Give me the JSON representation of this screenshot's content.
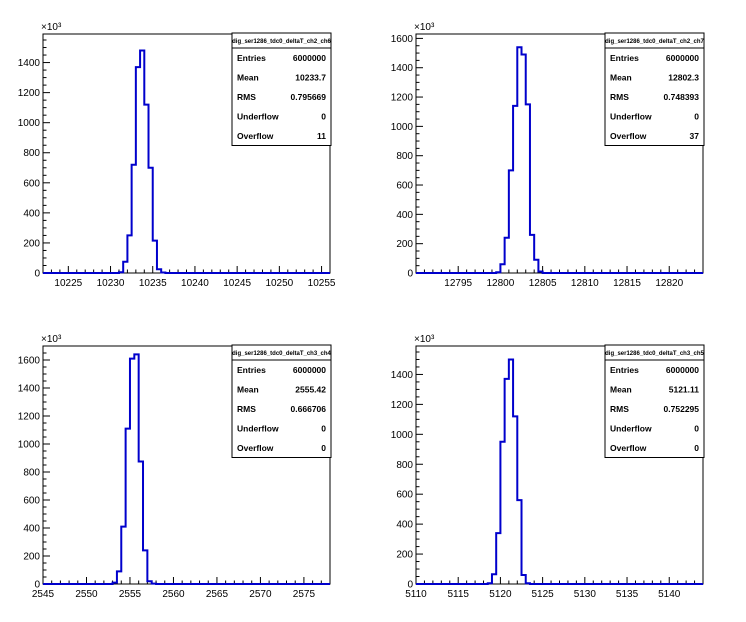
{
  "chart_data": [
    {
      "type": "histogram",
      "title": "dig_ser1286_tdc0_deltaT_ch2_ch6",
      "xlim": [
        10222,
        10256
      ],
      "ylim": [
        0,
        1590
      ],
      "y_multiplier": "×10³",
      "y_tick_values": [
        0,
        200,
        400,
        600,
        800,
        1000,
        1200,
        1400
      ],
      "y_tick_labels": [
        "0",
        "200",
        "400",
        "600",
        "800",
        "1000",
        "1200",
        "1400"
      ],
      "x_tick_values": [
        10225,
        10230,
        10235,
        10240,
        10245,
        10250,
        10255
      ],
      "x_tick_labels": [
        "10225",
        "10230",
        "10235",
        "10240",
        "10245",
        "10250",
        "10255"
      ],
      "bin_width": 0.5,
      "bins_low_edges": [
        10231.0,
        10231.5,
        10232.0,
        10232.5,
        10233.0,
        10233.5,
        10234.0,
        10234.5,
        10235.0,
        10235.5,
        10236.0
      ],
      "counts": [
        5,
        75,
        250,
        720,
        1370,
        1480,
        1120,
        700,
        215,
        25,
        3
      ],
      "stats": [
        {
          "label": "Entries",
          "value": "6000000"
        },
        {
          "label": "Mean",
          "value": "10233.7"
        },
        {
          "label": "RMS",
          "value": "0.795669"
        },
        {
          "label": "Underflow",
          "value": "0"
        },
        {
          "label": "Overflow",
          "value": "11"
        }
      ]
    },
    {
      "type": "histogram",
      "title": "dig_ser1286_tdc0_deltaT_ch2_ch7",
      "xlim": [
        12790,
        12824
      ],
      "ylim": [
        0,
        1630
      ],
      "y_multiplier": "×10³",
      "y_tick_values": [
        0,
        200,
        400,
        600,
        800,
        1000,
        1200,
        1400,
        1600
      ],
      "y_tick_labels": [
        "0",
        "200",
        "400",
        "600",
        "800",
        "1000",
        "1200",
        "1400",
        "1600"
      ],
      "x_tick_values": [
        12795,
        12800,
        12805,
        12810,
        12815,
        12820
      ],
      "x_tick_labels": [
        "12795",
        "12800",
        "12805",
        "12810",
        "12815",
        "12820"
      ],
      "bin_width": 0.5,
      "bins_low_edges": [
        12799.5,
        12800.0,
        12800.5,
        12801.0,
        12801.5,
        12802.0,
        12802.5,
        12803.0,
        12803.5,
        12804.0,
        12804.5
      ],
      "counts": [
        5,
        60,
        240,
        700,
        1140,
        1540,
        1490,
        1150,
        260,
        90,
        10
      ],
      "stats": [
        {
          "label": "Entries",
          "value": "6000000"
        },
        {
          "label": "Mean",
          "value": "12802.3"
        },
        {
          "label": "RMS",
          "value": "0.748393"
        },
        {
          "label": "Underflow",
          "value": "0"
        },
        {
          "label": "Overflow",
          "value": "37"
        }
      ]
    },
    {
      "type": "histogram",
      "title": "dig_ser1286_tdc0_deltaT_ch3_ch4",
      "xlim": [
        2545,
        2578
      ],
      "ylim": [
        0,
        1700
      ],
      "y_multiplier": "×10³",
      "y_tick_values": [
        0,
        200,
        400,
        600,
        800,
        1000,
        1200,
        1400,
        1600
      ],
      "y_tick_labels": [
        "0",
        "200",
        "400",
        "600",
        "800",
        "1000",
        "1200",
        "1400",
        "1600"
      ],
      "x_tick_values": [
        2545,
        2550,
        2555,
        2560,
        2565,
        2570,
        2575
      ],
      "x_tick_labels": [
        "2545",
        "2550",
        "2555",
        "2560",
        "2565",
        "2570",
        "2575"
      ],
      "bin_width": 0.5,
      "bins_low_edges": [
        2553.0,
        2553.5,
        2554.0,
        2554.5,
        2555.0,
        2555.5,
        2556.0,
        2556.5,
        2557.0,
        2557.5
      ],
      "counts": [
        10,
        90,
        410,
        1110,
        1610,
        1640,
        875,
        240,
        20,
        3
      ],
      "stats": [
        {
          "label": "Entries",
          "value": "6000000"
        },
        {
          "label": "Mean",
          "value": "2555.42"
        },
        {
          "label": "RMS",
          "value": "0.666706"
        },
        {
          "label": "Underflow",
          "value": "0"
        },
        {
          "label": "Overflow",
          "value": "0"
        }
      ]
    },
    {
      "type": "histogram",
      "title": "dig_ser1286_tdc0_deltaT_ch3_ch5",
      "xlim": [
        5110,
        5144
      ],
      "ylim": [
        0,
        1590
      ],
      "y_multiplier": "×10³",
      "y_tick_values": [
        0,
        200,
        400,
        600,
        800,
        1000,
        1200,
        1400
      ],
      "y_tick_labels": [
        "0",
        "200",
        "400",
        "600",
        "800",
        "1000",
        "1200",
        "1400"
      ],
      "x_tick_values": [
        5110,
        5115,
        5120,
        5125,
        5130,
        5135,
        5140
      ],
      "x_tick_labels": [
        "5110",
        "5115",
        "5120",
        "5125",
        "5130",
        "5135",
        "5140"
      ],
      "bin_width": 0.5,
      "bins_low_edges": [
        5118.5,
        5119.0,
        5119.5,
        5120.0,
        5120.5,
        5121.0,
        5121.5,
        5122.0,
        5122.5,
        5123.0
      ],
      "counts": [
        5,
        65,
        340,
        950,
        1370,
        1500,
        1120,
        560,
        60,
        5
      ],
      "stats": [
        {
          "label": "Entries",
          "value": "6000000"
        },
        {
          "label": "Mean",
          "value": "5121.11"
        },
        {
          "label": "RMS",
          "value": "0.752295"
        },
        {
          "label": "Underflow",
          "value": "0"
        },
        {
          "label": "Overflow",
          "value": "0"
        }
      ]
    }
  ],
  "colors": {
    "histogram_line": "#0000cc",
    "axes": "#000000",
    "background": "#ffffff"
  }
}
